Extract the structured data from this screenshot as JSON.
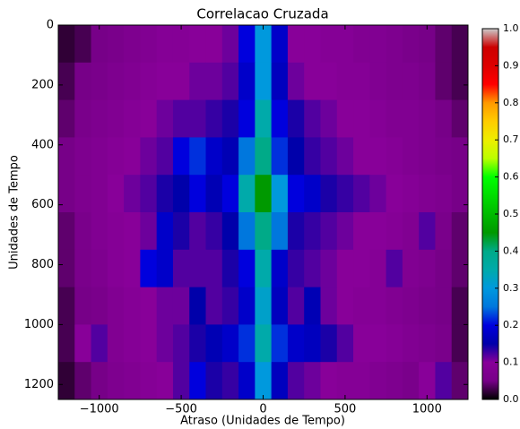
{
  "chart_data": {
    "type": "heatmap",
    "title": "Correlacao Cruzada",
    "x_label": "Atraso (Unidades de Tempo)",
    "y_label": "Unidades de Tempo",
    "colormap": "nipy_spectral",
    "xlim": [
      -1250,
      1250
    ],
    "xticks": [
      {
        "value": -1000,
        "label": "−1000"
      },
      {
        "value": -500,
        "label": "−500"
      },
      0,
      500,
      1000
    ],
    "ylim": [
      1250,
      0
    ],
    "yticks": [
      0,
      200,
      400,
      600,
      800,
      1000,
      1200
    ],
    "zlim": [
      0,
      1
    ],
    "zticks": [
      {
        "value": 0,
        "label": "0.0"
      },
      {
        "value": 0.1,
        "label": "0.1"
      },
      {
        "value": 0.2,
        "label": "0.2"
      },
      {
        "value": 0.3,
        "label": "0.3"
      },
      {
        "value": 0.4,
        "label": "0.4"
      },
      {
        "value": 0.5,
        "label": "0.5"
      },
      {
        "value": 0.6,
        "label": "0.6"
      },
      {
        "value": 0.7,
        "label": "0.7"
      },
      {
        "value": 0.8,
        "label": "0.8"
      },
      {
        "value": 0.9,
        "label": "0.9"
      },
      {
        "value": 1,
        "label": "1.0"
      }
    ],
    "x": [
      -1200,
      -1100,
      -1000,
      -900,
      -800,
      -700,
      -600,
      -500,
      -400,
      -300,
      -200,
      -100,
      0,
      100,
      200,
      300,
      400,
      500,
      600,
      700,
      800,
      900,
      1000,
      1100,
      1200
    ],
    "y": [
      62.5,
      187.5,
      312.5,
      437.5,
      562.5,
      687.5,
      812.5,
      937.5,
      1062.5,
      1187.5
    ],
    "values": [
      [
        0.02,
        0.03,
        0.05,
        0.06,
        0.07,
        0.08,
        0.09,
        0.09,
        0.1,
        0.1,
        0.11,
        0.2,
        0.3,
        0.18,
        0.1,
        0.1,
        0.09,
        0.09,
        0.08,
        0.08,
        0.07,
        0.06,
        0.05,
        0.04,
        0.03
      ],
      [
        0.03,
        0.05,
        0.06,
        0.07,
        0.08,
        0.09,
        0.1,
        0.1,
        0.11,
        0.11,
        0.12,
        0.18,
        0.3,
        0.17,
        0.11,
        0.1,
        0.1,
        0.09,
        0.09,
        0.08,
        0.07,
        0.07,
        0.06,
        0.04,
        0.03
      ],
      [
        0.04,
        0.06,
        0.07,
        0.08,
        0.09,
        0.1,
        0.11,
        0.12,
        0.12,
        0.13,
        0.14,
        0.2,
        0.35,
        0.2,
        0.14,
        0.12,
        0.11,
        0.1,
        0.1,
        0.09,
        0.08,
        0.08,
        0.07,
        0.05,
        0.04
      ],
      [
        0.05,
        0.07,
        0.08,
        0.09,
        0.1,
        0.11,
        0.12,
        0.2,
        0.22,
        0.18,
        0.16,
        0.25,
        0.4,
        0.22,
        0.15,
        0.13,
        0.12,
        0.11,
        0.1,
        0.1,
        0.09,
        0.08,
        0.07,
        0.06,
        0.05
      ],
      [
        0.05,
        0.07,
        0.08,
        0.1,
        0.11,
        0.12,
        0.14,
        0.15,
        0.2,
        0.16,
        0.2,
        0.35,
        0.45,
        0.3,
        0.2,
        0.18,
        0.14,
        0.13,
        0.12,
        0.11,
        0.1,
        0.09,
        0.08,
        0.07,
        0.05
      ],
      [
        0.04,
        0.06,
        0.08,
        0.09,
        0.1,
        0.11,
        0.18,
        0.14,
        0.12,
        0.13,
        0.15,
        0.25,
        0.4,
        0.25,
        0.14,
        0.13,
        0.12,
        0.11,
        0.1,
        0.1,
        0.09,
        0.08,
        0.12,
        0.06,
        0.04
      ],
      [
        0.04,
        0.06,
        0.07,
        0.09,
        0.1,
        0.2,
        0.18,
        0.12,
        0.12,
        0.12,
        0.14,
        0.2,
        0.35,
        0.18,
        0.13,
        0.12,
        0.11,
        0.1,
        0.1,
        0.09,
        0.12,
        0.08,
        0.07,
        0.05,
        0.04
      ],
      [
        0.03,
        0.05,
        0.06,
        0.08,
        0.09,
        0.1,
        0.11,
        0.11,
        0.15,
        0.12,
        0.13,
        0.18,
        0.32,
        0.17,
        0.12,
        0.16,
        0.11,
        0.1,
        0.09,
        0.09,
        0.08,
        0.07,
        0.06,
        0.05,
        0.03
      ],
      [
        0.03,
        0.1,
        0.12,
        0.08,
        0.09,
        0.1,
        0.11,
        0.12,
        0.14,
        0.16,
        0.18,
        0.22,
        0.35,
        0.22,
        0.18,
        0.17,
        0.14,
        0.12,
        0.1,
        0.1,
        0.09,
        0.08,
        0.07,
        0.06,
        0.03
      ],
      [
        0.02,
        0.04,
        0.05,
        0.07,
        0.08,
        0.09,
        0.1,
        0.12,
        0.2,
        0.14,
        0.13,
        0.18,
        0.3,
        0.17,
        0.12,
        0.11,
        0.1,
        0.09,
        0.09,
        0.08,
        0.07,
        0.06,
        0.1,
        0.12,
        0.04
      ]
    ]
  }
}
